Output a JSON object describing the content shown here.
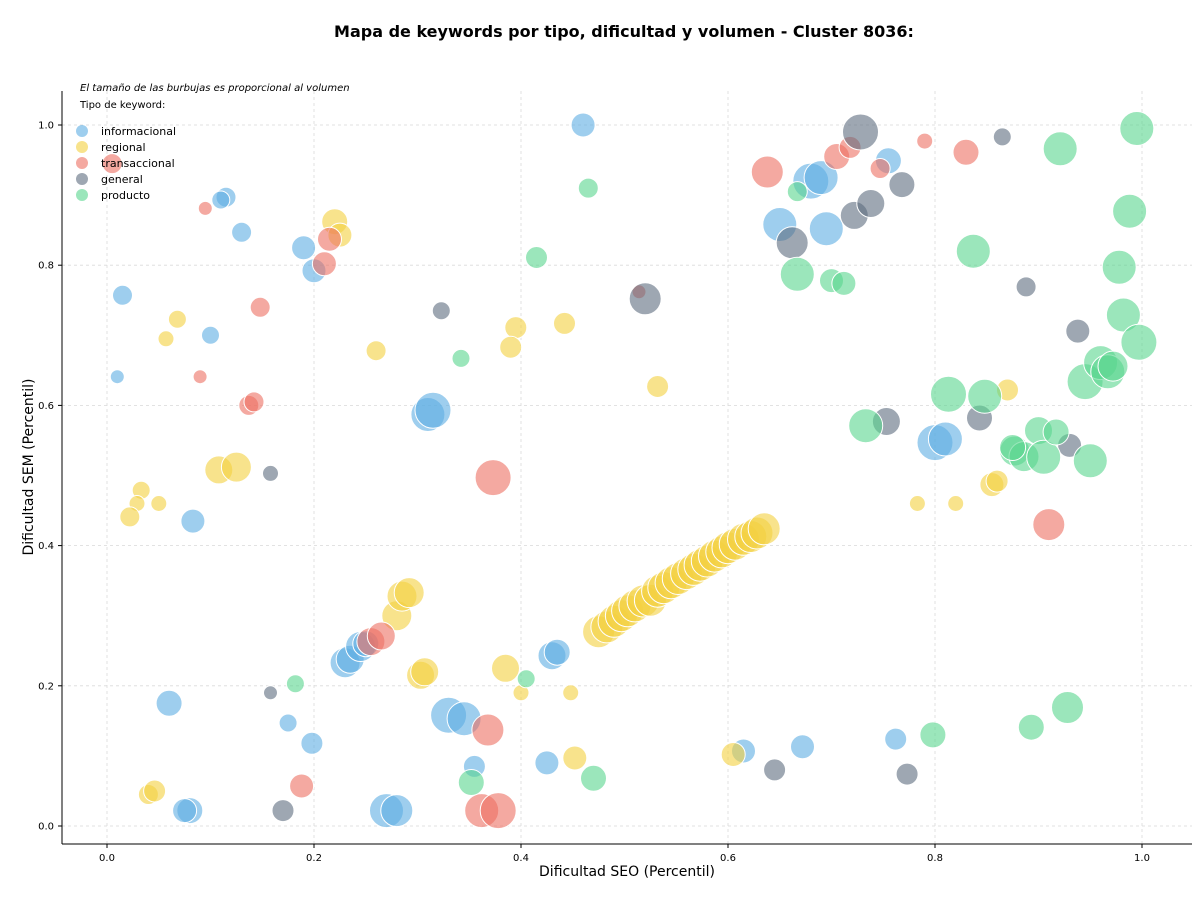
{
  "chart_data": {
    "type": "scatter",
    "title": "Mapa de keywords por tipo, dificultad y volumen - Cluster 8036:",
    "xlabel": "Dificultad SEO (Percentil)",
    "ylabel": "Dificultad SEM (Percentil)",
    "xlim": [
      -0.04,
      1.05
    ],
    "ylim": [
      -0.025,
      1.05
    ],
    "xticks": [
      "0.0",
      "0.2",
      "0.4",
      "0.6",
      "0.8",
      "1.0"
    ],
    "yticks": [
      "0.0",
      "0.2",
      "0.4",
      "0.6",
      "0.8",
      "1.0"
    ],
    "grid": true,
    "note": "El tamaño de las burbujas es proporcional al volumen",
    "legend": {
      "title": "Tipo de keyword:",
      "placement": "top-left"
    },
    "series": [
      {
        "name": "informacional",
        "color": "#5DADE2",
        "points": [
          [
            0.46,
            1.0,
            12
          ],
          [
            0.115,
            0.897,
            10
          ],
          [
            0.11,
            0.893,
            9
          ],
          [
            0.13,
            0.847,
            10
          ],
          [
            0.19,
            0.825,
            12
          ],
          [
            0.2,
            0.792,
            12
          ],
          [
            0.015,
            0.757,
            10
          ],
          [
            0.1,
            0.7,
            9
          ],
          [
            0.01,
            0.641,
            7
          ],
          [
            0.083,
            0.435,
            12
          ],
          [
            0.31,
            0.587,
            17
          ],
          [
            0.315,
            0.593,
            18
          ],
          [
            0.06,
            0.175,
            13
          ],
          [
            0.08,
            0.022,
            13
          ],
          [
            0.075,
            0.022,
            12
          ],
          [
            0.175,
            0.147,
            9
          ],
          [
            0.198,
            0.118,
            11
          ],
          [
            0.23,
            0.233,
            15
          ],
          [
            0.235,
            0.238,
            14
          ],
          [
            0.245,
            0.256,
            15
          ],
          [
            0.25,
            0.26,
            13
          ],
          [
            0.33,
            0.158,
            18
          ],
          [
            0.345,
            0.153,
            17
          ],
          [
            0.355,
            0.085,
            11
          ],
          [
            0.27,
            0.022,
            17
          ],
          [
            0.28,
            0.022,
            16
          ],
          [
            0.425,
            0.09,
            12
          ],
          [
            0.43,
            0.243,
            14
          ],
          [
            0.435,
            0.248,
            13
          ],
          [
            0.615,
            0.107,
            12
          ],
          [
            0.672,
            0.113,
            12
          ],
          [
            0.762,
            0.124,
            11
          ],
          [
            0.65,
            0.858,
            17
          ],
          [
            0.68,
            0.92,
            18
          ],
          [
            0.69,
            0.925,
            17
          ],
          [
            0.695,
            0.852,
            17
          ],
          [
            0.755,
            0.949,
            13
          ],
          [
            0.8,
            0.547,
            18
          ],
          [
            0.81,
            0.552,
            17
          ]
        ]
      },
      {
        "name": "regional",
        "color": "#F4D03F",
        "points": [
          [
            0.22,
            0.862,
            13
          ],
          [
            0.225,
            0.843,
            12
          ],
          [
            0.068,
            0.723,
            9
          ],
          [
            0.057,
            0.695,
            8
          ],
          [
            0.26,
            0.678,
            10
          ],
          [
            0.395,
            0.711,
            11
          ],
          [
            0.39,
            0.683,
            11
          ],
          [
            0.442,
            0.717,
            11
          ],
          [
            0.532,
            0.627,
            11
          ],
          [
            0.108,
            0.508,
            14
          ],
          [
            0.125,
            0.512,
            15
          ],
          [
            0.033,
            0.479,
            9
          ],
          [
            0.029,
            0.46,
            8
          ],
          [
            0.05,
            0.46,
            8
          ],
          [
            0.022,
            0.441,
            10
          ],
          [
            0.04,
            0.045,
            10
          ],
          [
            0.046,
            0.05,
            11
          ],
          [
            0.28,
            0.3,
            15
          ],
          [
            0.285,
            0.328,
            15
          ],
          [
            0.292,
            0.333,
            15
          ],
          [
            0.303,
            0.215,
            14
          ],
          [
            0.307,
            0.22,
            14
          ],
          [
            0.385,
            0.225,
            14
          ],
          [
            0.4,
            0.19,
            8
          ],
          [
            0.448,
            0.19,
            8
          ],
          [
            0.452,
            0.097,
            12
          ],
          [
            0.605,
            0.102,
            12
          ],
          [
            0.783,
            0.46,
            8
          ],
          [
            0.82,
            0.46,
            8
          ],
          [
            0.855,
            0.487,
            12
          ],
          [
            0.86,
            0.492,
            11
          ],
          [
            0.87,
            0.622,
            11
          ],
          [
            0.475,
            0.277,
            16
          ],
          [
            0.483,
            0.284,
            16
          ],
          [
            0.49,
            0.292,
            16
          ],
          [
            0.497,
            0.3,
            16
          ],
          [
            0.503,
            0.307,
            16
          ],
          [
            0.51,
            0.314,
            16
          ],
          [
            0.518,
            0.321,
            16
          ],
          [
            0.525,
            0.322,
            16
          ],
          [
            0.532,
            0.335,
            16
          ],
          [
            0.538,
            0.34,
            16
          ],
          [
            0.545,
            0.347,
            16
          ],
          [
            0.552,
            0.353,
            16
          ],
          [
            0.56,
            0.36,
            16
          ],
          [
            0.567,
            0.366,
            16
          ],
          [
            0.573,
            0.372,
            16
          ],
          [
            0.58,
            0.378,
            16
          ],
          [
            0.587,
            0.385,
            16
          ],
          [
            0.594,
            0.391,
            16
          ],
          [
            0.6,
            0.397,
            16
          ],
          [
            0.607,
            0.402,
            16
          ],
          [
            0.615,
            0.409,
            16
          ],
          [
            0.622,
            0.413,
            16
          ],
          [
            0.628,
            0.418,
            16
          ],
          [
            0.635,
            0.424,
            16
          ]
        ]
      },
      {
        "name": "transaccional",
        "color": "#EC7063",
        "points": [
          [
            0.005,
            0.945,
            10
          ],
          [
            0.095,
            0.881,
            7
          ],
          [
            0.215,
            0.837,
            12
          ],
          [
            0.21,
            0.802,
            12
          ],
          [
            0.148,
            0.74,
            10
          ],
          [
            0.09,
            0.641,
            7
          ],
          [
            0.137,
            0.6,
            10
          ],
          [
            0.142,
            0.605,
            10
          ],
          [
            0.373,
            0.497,
            18
          ],
          [
            0.255,
            0.263,
            14
          ],
          [
            0.265,
            0.271,
            14
          ],
          [
            0.368,
            0.137,
            16
          ],
          [
            0.188,
            0.057,
            12
          ],
          [
            0.362,
            0.022,
            17
          ],
          [
            0.378,
            0.022,
            18
          ],
          [
            0.514,
            0.762,
            7
          ],
          [
            0.638,
            0.933,
            16
          ],
          [
            0.705,
            0.955,
            13
          ],
          [
            0.718,
            0.968,
            11
          ],
          [
            0.747,
            0.938,
            10
          ],
          [
            0.79,
            0.977,
            8
          ],
          [
            0.83,
            0.961,
            13
          ],
          [
            0.91,
            0.43,
            16
          ]
        ]
      },
      {
        "name": "general",
        "color": "#5D6D7E",
        "points": [
          [
            0.323,
            0.735,
            9
          ],
          [
            0.52,
            0.752,
            16
          ],
          [
            0.158,
            0.503,
            8
          ],
          [
            0.158,
            0.19,
            7
          ],
          [
            0.17,
            0.022,
            11
          ],
          [
            0.645,
            0.08,
            11
          ],
          [
            0.773,
            0.074,
            11
          ],
          [
            0.662,
            0.832,
            16
          ],
          [
            0.722,
            0.871,
            14
          ],
          [
            0.738,
            0.888,
            14
          ],
          [
            0.728,
            0.99,
            18
          ],
          [
            0.768,
            0.915,
            13
          ],
          [
            0.865,
            0.983,
            9
          ],
          [
            0.888,
            0.769,
            10
          ],
          [
            0.938,
            0.706,
            12
          ],
          [
            0.753,
            0.577,
            14
          ],
          [
            0.843,
            0.582,
            13
          ],
          [
            0.93,
            0.543,
            12
          ]
        ]
      },
      {
        "name": "producto",
        "color": "#58D68D",
        "points": [
          [
            0.465,
            0.91,
            10
          ],
          [
            0.415,
            0.811,
            11
          ],
          [
            0.342,
            0.667,
            9
          ],
          [
            0.182,
            0.203,
            9
          ],
          [
            0.405,
            0.21,
            9
          ],
          [
            0.352,
            0.062,
            13
          ],
          [
            0.47,
            0.068,
            13
          ],
          [
            0.667,
            0.905,
            10
          ],
          [
            0.667,
            0.787,
            17
          ],
          [
            0.7,
            0.778,
            12
          ],
          [
            0.712,
            0.774,
            12
          ],
          [
            0.733,
            0.571,
            17
          ],
          [
            0.798,
            0.13,
            13
          ],
          [
            0.837,
            0.82,
            17
          ],
          [
            0.813,
            0.616,
            18
          ],
          [
            0.848,
            0.613,
            17
          ],
          [
            0.893,
            0.141,
            13
          ],
          [
            0.928,
            0.169,
            16
          ],
          [
            0.921,
            0.966,
            17
          ],
          [
            0.995,
            0.995,
            17
          ],
          [
            0.988,
            0.877,
            17
          ],
          [
            0.978,
            0.797,
            17
          ],
          [
            0.982,
            0.729,
            17
          ],
          [
            0.997,
            0.69,
            18
          ],
          [
            0.945,
            0.634,
            18
          ],
          [
            0.96,
            0.661,
            17
          ],
          [
            0.967,
            0.648,
            17
          ],
          [
            0.972,
            0.656,
            15
          ],
          [
            0.877,
            0.535,
            15
          ],
          [
            0.886,
            0.527,
            15
          ],
          [
            0.9,
            0.564,
            14
          ],
          [
            0.905,
            0.526,
            17
          ],
          [
            0.917,
            0.562,
            13
          ],
          [
            0.95,
            0.521,
            17
          ],
          [
            0.875,
            0.54,
            13
          ]
        ]
      }
    ]
  }
}
